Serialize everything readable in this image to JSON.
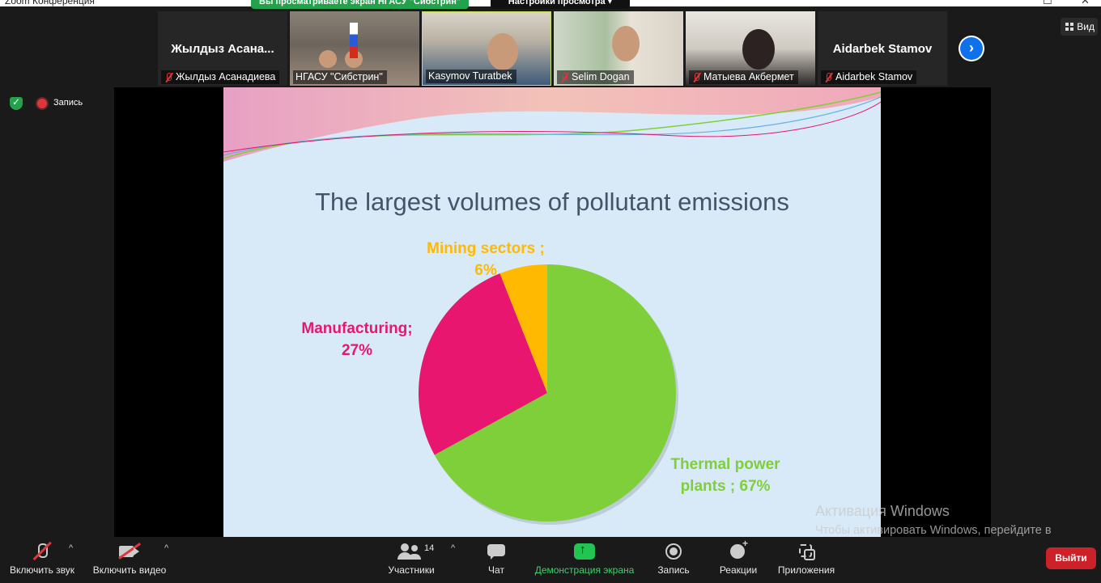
{
  "window": {
    "title": "Zoom Конференция",
    "minimize": "–",
    "maximize": "☐",
    "close": "✕"
  },
  "banner": {
    "sharing_text": "Вы просматриваете экран НГАСУ \"Сибстрин\"",
    "view_settings": "Настройки просмотра ▾"
  },
  "participants": [
    {
      "name": "Жылдыз Асанадиева",
      "display": "Жылдыз Асана...",
      "video": false,
      "muted": true
    },
    {
      "name": "НГАСУ \"Сибстрин\"",
      "video": true,
      "muted": false
    },
    {
      "name": "Kasymov Turatbek",
      "video": true,
      "muted": false
    },
    {
      "name": "Selim Dogan",
      "video": true,
      "muted": true
    },
    {
      "name": "Матыева Акбермет",
      "video": true,
      "muted": true
    },
    {
      "name": "Aidarbek Stamov",
      "display": "Aidarbek Stamov",
      "video": false,
      "muted": true
    }
  ],
  "next_icon": "chevron-right-icon",
  "view_button": "Вид",
  "status": {
    "recording_label": "Запись",
    "accent_green": "#23a24b",
    "rec_red": "#e0363b"
  },
  "slide": {
    "title": "The largest volumes of pollutant emissions",
    "background": "#d8e9f8"
  },
  "chart_data": {
    "type": "pie",
    "title": "The largest volumes of pollutant emissions",
    "slices": [
      {
        "label": "Thermal power plants",
        "value": 67,
        "color": "#7fcf3a",
        "text_line1": "Thermal power",
        "text_line2": "plants ; 67%"
      },
      {
        "label": "Manufacturing",
        "value": 27,
        "color": "#e8166f",
        "text_line1": "Manufacturing;",
        "text_line2": "27%"
      },
      {
        "label": "Mining sectors",
        "value": 6,
        "color": "#ffba00",
        "text_line1": "Mining sectors ;",
        "text_line2": "6%"
      }
    ]
  },
  "watermark": {
    "title": "Активация Windows",
    "text": "Чтобы активировать Windows, перейдите в раздел \"Параметры\"."
  },
  "toolbar": {
    "unmute": "Включить звук",
    "start_video": "Включить видео",
    "participants": "Участники",
    "participants_count": "14",
    "chat": "Чат",
    "share": "Демонстрация экрана",
    "record": "Запись",
    "reactions": "Реакции",
    "apps": "Приложения",
    "leave": "Выйти",
    "caret": "^"
  }
}
